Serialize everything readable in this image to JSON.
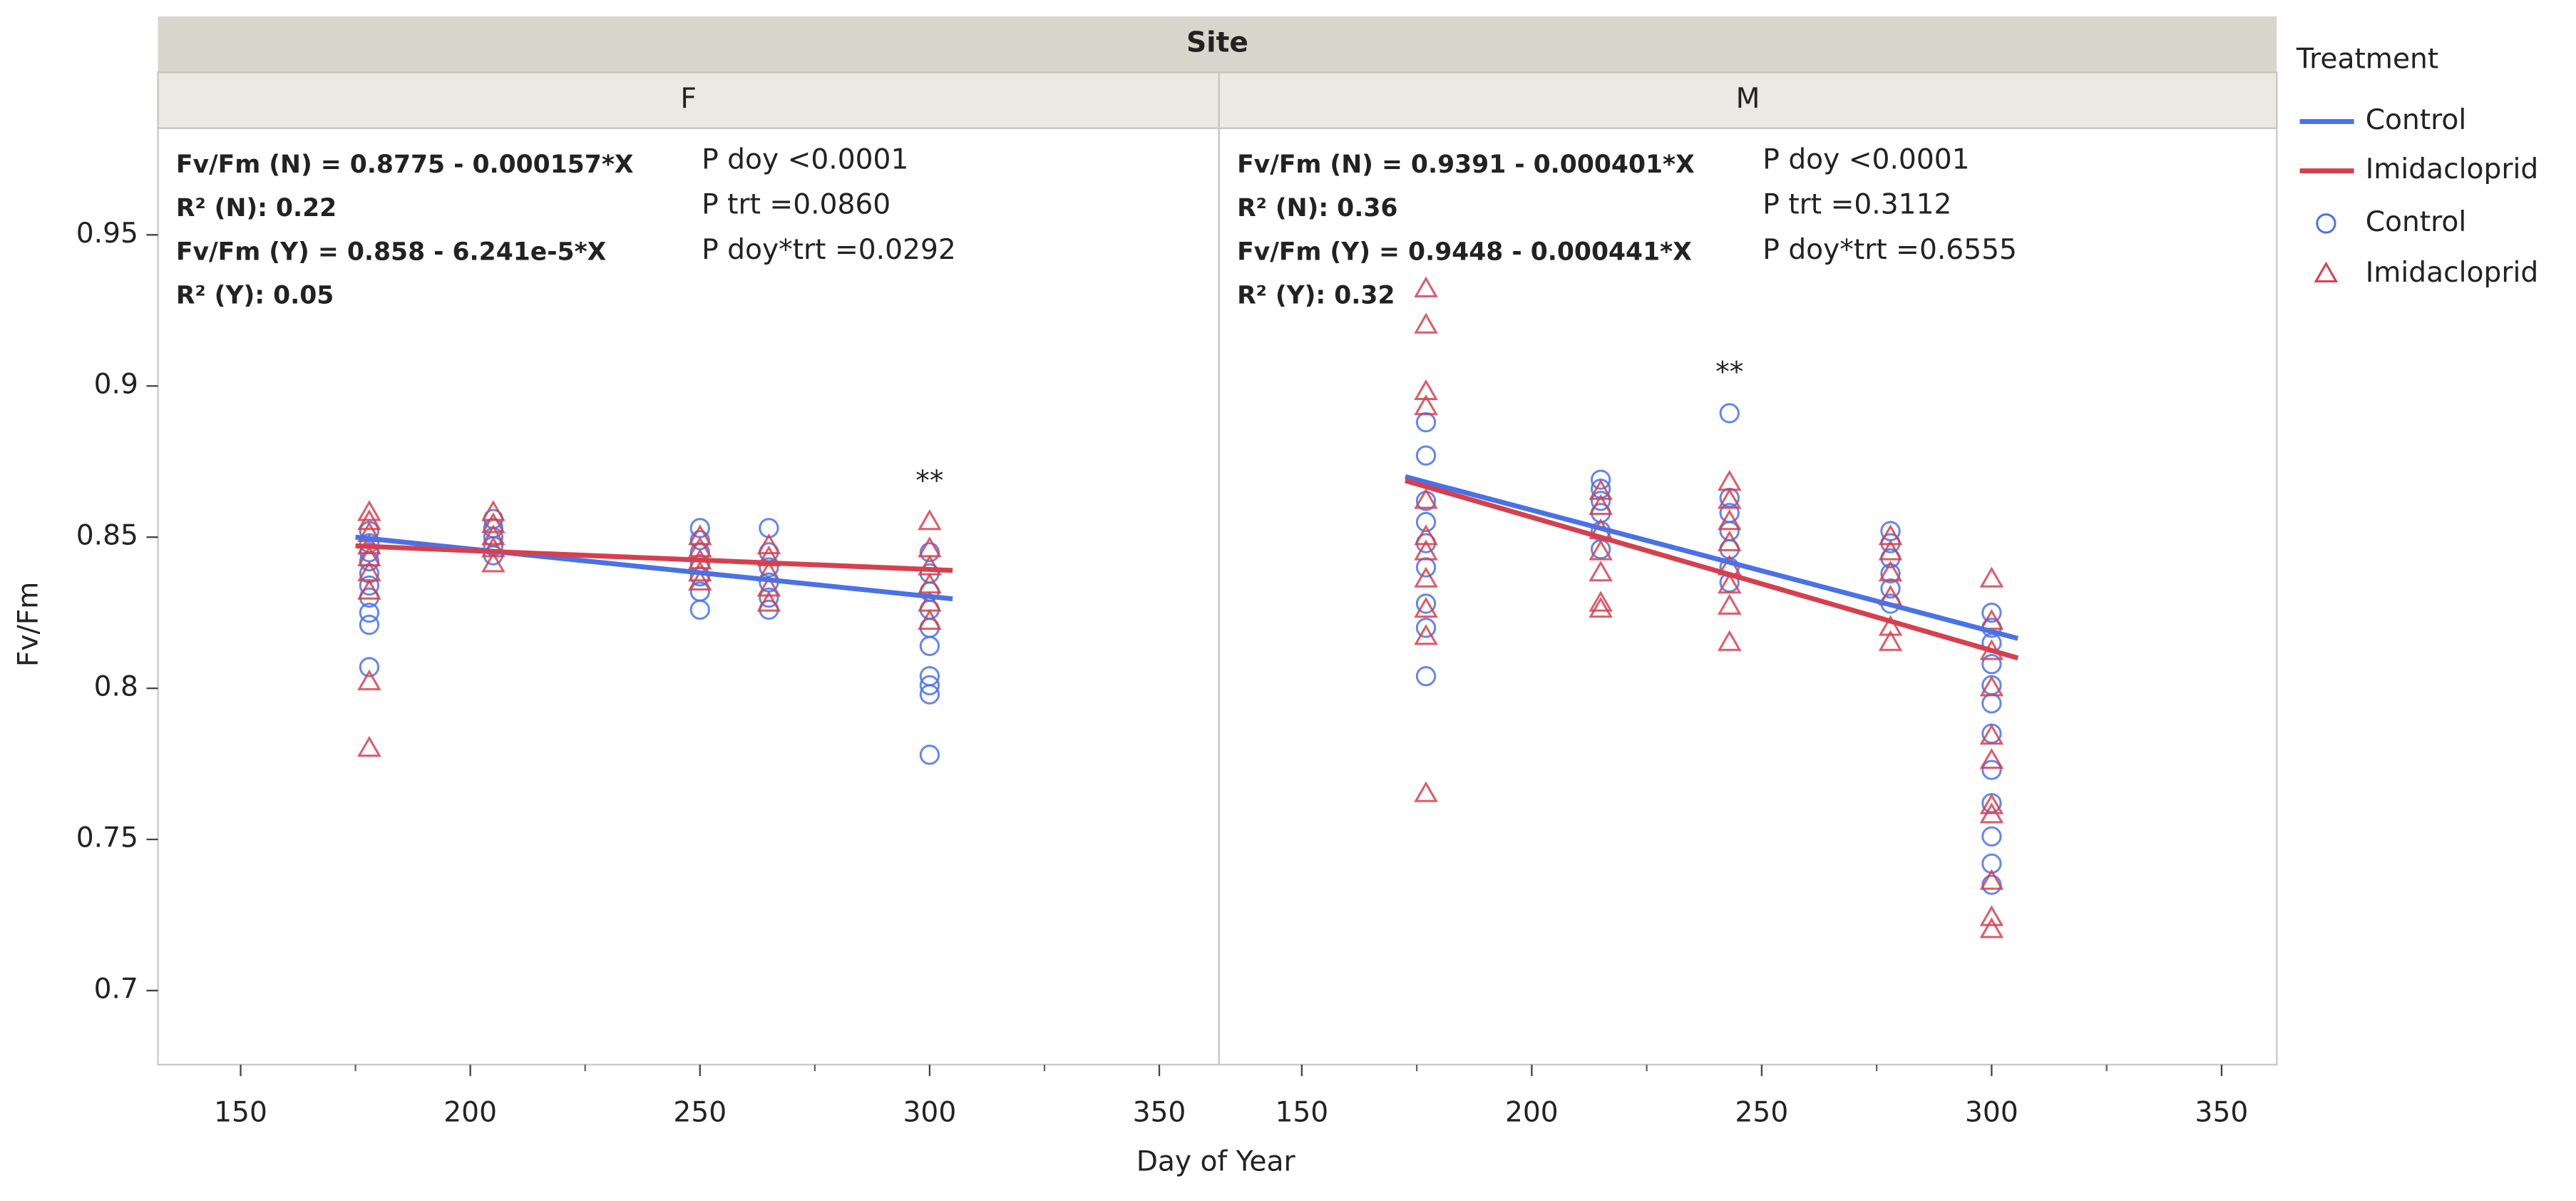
{
  "figure": {
    "facet_label": "Site",
    "x_label": "Day of Year",
    "y_label": "Fv/Fm",
    "legend_title": "Treatment"
  },
  "chart_data": [
    {
      "type": "scatter",
      "title": "F",
      "xlim": [
        132,
        363
      ],
      "xticks": [
        150,
        200,
        250,
        300,
        350
      ],
      "ylim": [
        0.6755,
        0.9853
      ],
      "yticks": [
        0.7,
        0.75,
        0.8,
        0.85,
        0.9,
        0.95
      ],
      "equations": [
        "Fv/Fm (N) = 0.8775 - 0.000157*X",
        "R² (N): 0.22",
        "Fv/Fm (Y) = 0.858 - 6.241e-5*X",
        "R² (Y): 0.05"
      ],
      "p_values": [
        "P doy <0.0001",
        "P trt =0.0860",
        "P doy*trt =0.0292"
      ],
      "significance": {
        "text": "**",
        "x": 300
      },
      "series": [
        {
          "name": "Control",
          "color": "#4a72e6",
          "marker": "circle",
          "x": [
            178,
            178,
            178,
            178,
            178,
            178,
            178,
            178,
            178,
            178,
            205,
            205,
            205,
            205,
            205,
            250,
            250,
            250,
            250,
            250,
            250,
            250,
            265,
            265,
            265,
            265,
            265,
            265,
            300,
            300,
            300,
            300,
            300,
            300,
            300,
            300,
            300,
            300
          ],
          "y": [
            0.852,
            0.848,
            0.845,
            0.842,
            0.838,
            0.834,
            0.83,
            0.825,
            0.821,
            0.807,
            0.856,
            0.853,
            0.85,
            0.847,
            0.844,
            0.853,
            0.849,
            0.845,
            0.841,
            0.837,
            0.832,
            0.826,
            0.853,
            0.845,
            0.84,
            0.835,
            0.83,
            0.826,
            0.845,
            0.838,
            0.832,
            0.826,
            0.82,
            0.814,
            0.804,
            0.801,
            0.798,
            0.778
          ]
        },
        {
          "name": "Imidacloprid",
          "color": "#d6404e",
          "marker": "triangle",
          "x": [
            178,
            178,
            178,
            178,
            178,
            178,
            178,
            178,
            178,
            205,
            205,
            205,
            205,
            205,
            250,
            250,
            250,
            250,
            250,
            265,
            265,
            265,
            265,
            265,
            300,
            300,
            300,
            300,
            300,
            300
          ],
          "y": [
            0.858,
            0.855,
            0.851,
            0.847,
            0.843,
            0.838,
            0.832,
            0.802,
            0.78,
            0.858,
            0.854,
            0.85,
            0.846,
            0.841,
            0.85,
            0.846,
            0.842,
            0.838,
            0.835,
            0.847,
            0.843,
            0.838,
            0.833,
            0.828,
            0.855,
            0.846,
            0.84,
            0.834,
            0.828,
            0.822
          ]
        }
      ],
      "lines": [
        {
          "name": "Control",
          "color": "#4a72e6",
          "x": [
            175,
            305
          ],
          "y": [
            0.85,
            0.8296
          ]
        },
        {
          "name": "Imidacloprid",
          "color": "#d6404e",
          "x": [
            175,
            305
          ],
          "y": [
            0.8471,
            0.839
          ]
        }
      ]
    },
    {
      "type": "scatter",
      "title": "M",
      "xlim": [
        132,
        362
      ],
      "xticks": [
        150,
        200,
        250,
        300,
        350
      ],
      "ylim": [
        0.6755,
        0.9853
      ],
      "equations": [
        "Fv/Fm (N) = 0.9391 - 0.000401*X",
        "R² (N): 0.36",
        "Fv/Fm (Y) = 0.9448 - 0.000441*X",
        "R² (Y): 0.32"
      ],
      "p_values": [
        "P doy <0.0001",
        "P trt =0.3112",
        "P doy*trt =0.6555"
      ],
      "significance": {
        "text": "**",
        "x": 243
      },
      "series": [
        {
          "name": "Control",
          "color": "#4a72e6",
          "marker": "circle",
          "x": [
            177,
            177,
            177,
            177,
            177,
            177,
            177,
            177,
            177,
            215,
            215,
            215,
            215,
            215,
            215,
            243,
            243,
            243,
            243,
            243,
            243,
            243,
            278,
            278,
            278,
            278,
            278,
            278,
            300,
            300,
            300,
            300,
            300,
            300,
            300,
            300,
            300,
            300,
            300,
            300
          ],
          "y": [
            0.888,
            0.877,
            0.862,
            0.855,
            0.848,
            0.84,
            0.828,
            0.82,
            0.804,
            0.869,
            0.866,
            0.862,
            0.858,
            0.852,
            0.846,
            0.891,
            0.863,
            0.858,
            0.852,
            0.846,
            0.84,
            0.835,
            0.852,
            0.848,
            0.843,
            0.838,
            0.833,
            0.828,
            0.825,
            0.82,
            0.815,
            0.808,
            0.801,
            0.795,
            0.785,
            0.773,
            0.762,
            0.751,
            0.742,
            0.735
          ]
        },
        {
          "name": "Imidacloprid",
          "color": "#d6404e",
          "marker": "triangle",
          "x": [
            177,
            177,
            177,
            177,
            177,
            177,
            177,
            177,
            177,
            177,
            177,
            215,
            215,
            215,
            215,
            215,
            215,
            215,
            243,
            243,
            243,
            243,
            243,
            243,
            243,
            243,
            278,
            278,
            278,
            278,
            278,
            278,
            300,
            300,
            300,
            300,
            300,
            300,
            300,
            300,
            300,
            300,
            300
          ],
          "y": [
            0.932,
            0.92,
            0.898,
            0.893,
            0.862,
            0.85,
            0.845,
            0.836,
            0.826,
            0.817,
            0.765,
            0.865,
            0.86,
            0.852,
            0.845,
            0.838,
            0.828,
            0.826,
            0.868,
            0.862,
            0.855,
            0.848,
            0.84,
            0.834,
            0.827,
            0.815,
            0.85,
            0.845,
            0.838,
            0.83,
            0.82,
            0.815,
            0.836,
            0.822,
            0.812,
            0.8,
            0.784,
            0.776,
            0.761,
            0.758,
            0.736,
            0.724,
            0.72
          ]
        }
      ],
      "lines": [
        {
          "name": "Control",
          "color": "#4a72e6",
          "x": [
            172.5,
            305.7
          ],
          "y": [
            0.87,
            0.8165
          ]
        },
        {
          "name": "Imidacloprid",
          "color": "#d6404e",
          "x": [
            172.5,
            305.7
          ],
          "y": [
            0.8687,
            0.81
          ]
        }
      ]
    }
  ]
}
